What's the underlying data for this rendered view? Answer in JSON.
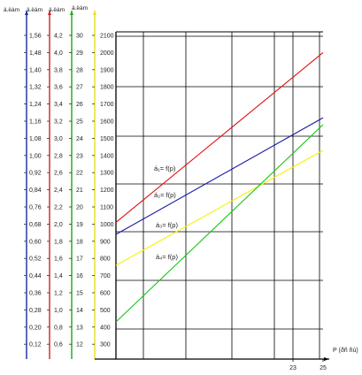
{
  "chart_data": {
    "type": "line",
    "x_label": "P (ðñ ñù)",
    "x_ticks": [
      23,
      25
    ],
    "axes": [
      {
        "label": "ä.ëàm",
        "color": "#1a2a9c",
        "ticks": [
          "1,56",
          "1,48",
          "1,40",
          "1,32",
          "1,24",
          "1,16",
          "1,08",
          "1,00",
          "0,92",
          "0,84",
          "0,76",
          "0,68",
          "0,60",
          "0,52",
          "0,44",
          "0,36",
          "0,28",
          "0,20",
          "0,12"
        ]
      },
      {
        "label": "ä.ëàm",
        "color": "#d42020",
        "ticks": [
          "4,2",
          "4,0",
          "3,8",
          "3,6",
          "3,4",
          "3,2",
          "3,0",
          "2,8",
          "2,6",
          "2,4",
          "2,2",
          "2,0",
          "1,8",
          "1,6",
          "1,4",
          "1,2",
          "1,0",
          "0,8",
          "0,6"
        ]
      },
      {
        "label": "ä.ëàm",
        "color": "#1da51d",
        "ticks": [
          "30",
          "29",
          "28",
          "27",
          "26",
          "25",
          "24",
          "23",
          "22",
          "21",
          "20",
          "19",
          "18",
          "17",
          "16",
          "15",
          "14",
          "13",
          "12"
        ]
      },
      {
        "label": "ä.ëàm",
        "color": "#e2e21a",
        "ticks": [
          "2100",
          "2000",
          "1900",
          "1800",
          "1700",
          "1600",
          "1500",
          "1400",
          "1300",
          "1200",
          "1100",
          "1000",
          "900",
          "800",
          "700",
          "600",
          "500",
          "400",
          "300"
        ]
      }
    ],
    "series": [
      {
        "name": "á₁= f(p)",
        "color": "#e01010",
        "start": 1010,
        "end": 2000
      },
      {
        "name": "á₂= f(p)",
        "color": "#1818a8",
        "start": 940,
        "end": 1620
      },
      {
        "name": "á₃= f(p)",
        "color": "#f4f400",
        "start": 760,
        "end": 1430
      },
      {
        "name": "á₄= f(p)",
        "color": "#10c810",
        "start": 430,
        "end": 1580
      }
    ]
  }
}
